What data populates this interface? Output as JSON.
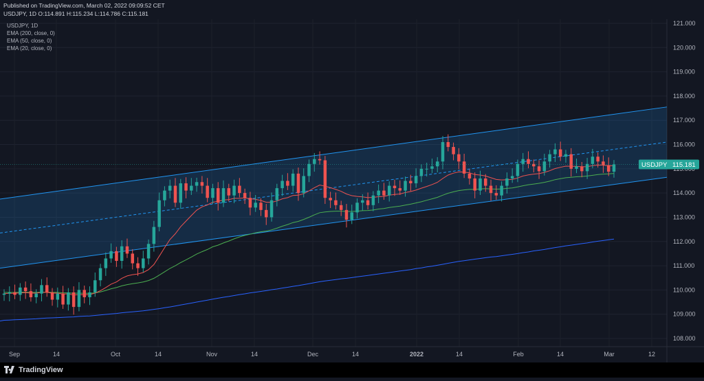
{
  "header": {
    "published": "Published on TradingView.com, March 02, 2022 09:09:52 CET",
    "ohlc": "USDJPY, 1D O:114.891 H:115.234 L:114.786 C:115.181"
  },
  "legend": [
    "USDJPY, 1D",
    "EMA (200, close, 0)",
    "EMA (50, close, 0)",
    "EMA (20, close, 0)"
  ],
  "footer": {
    "brand": "TradingView"
  },
  "colors": {
    "background": "#131722",
    "up": "#26a69a",
    "down": "#ef5350",
    "ema20": "#ef5350",
    "ema50": "#4caf50",
    "ema200": "#2962ff",
    "channel": "#2196f3",
    "price_tag": "#26a69a"
  },
  "chart_data": {
    "type": "candlestick",
    "symbol": "USDJPY",
    "interval": "1D",
    "ylim": [
      107.6,
      121.4
    ],
    "y_ticks": [
      "121.000",
      "120.000",
      "119.000",
      "118.000",
      "117.000",
      "116.000",
      "115.000",
      "114.000",
      "113.000",
      "112.000",
      "111.000",
      "110.000",
      "109.000",
      "108.000"
    ],
    "x_ticks": [
      "Sep",
      "14",
      "Oct",
      "14",
      "Nov",
      "14",
      "Dec",
      "14",
      "2022",
      "14",
      "Feb",
      "14",
      "Mar",
      "12"
    ],
    "last_price": {
      "label": "USDJPY",
      "value": "115.181"
    },
    "closes": [
      109.85,
      109.9,
      109.8,
      110.1,
      109.95,
      109.7,
      109.85,
      110.2,
      109.9,
      109.6,
      109.85,
      109.4,
      109.9,
      109.3,
      110,
      109.7,
      109.9,
      110.4,
      110.9,
      111.3,
      111.6,
      111.2,
      111.8,
      111.5,
      111.1,
      110.9,
      111.3,
      111.9,
      112.6,
      113.7,
      114.1,
      114.3,
      113.6,
      114.4,
      114.1,
      114.3,
      114.45,
      114.3,
      113.8,
      114.2,
      113.6,
      114.2,
      113.9,
      114.3,
      114,
      113.8,
      113.4,
      113.6,
      113.3,
      113,
      113.7,
      114.2,
      114.5,
      114.3,
      114.8,
      114.0,
      114.7,
      115.2,
      115.4,
      115.35,
      113.8,
      113.7,
      113.5,
      113.3,
      112.9,
      113.2,
      113.6,
      113.7,
      113.5,
      113.9,
      114.1,
      113.9,
      114.3,
      114.2,
      114.1,
      114.5,
      114.4,
      114.7,
      115,
      115,
      115.1,
      115.3,
      116.1,
      115.9,
      115.6,
      115.3,
      114.8,
      114.6,
      114.1,
      114.6,
      114.3,
      114,
      113.9,
      114.3,
      114.6,
      114.7,
      115.2,
      115.4,
      115.2,
      115.1,
      114.9,
      115.3,
      115.6,
      115.8,
      115.5,
      115.6,
      115,
      115.1,
      114.9,
      115.2,
      115.5,
      115.3,
      115.15,
      114.88,
      115.18
    ],
    "ema20": [
      109.85,
      109.86,
      109.86,
      109.88,
      109.89,
      109.87,
      109.87,
      109.9,
      109.9,
      109.87,
      109.87,
      109.83,
      109.84,
      109.79,
      109.81,
      109.8,
      109.81,
      109.87,
      109.97,
      110.1,
      110.24,
      110.33,
      110.48,
      110.58,
      110.63,
      110.66,
      110.72,
      110.84,
      111.05,
      111.39,
      111.74,
      112.08,
      112.32,
      112.61,
      112.84,
      113.07,
      113.29,
      113.43,
      113.51,
      113.62,
      113.66,
      113.71,
      113.73,
      113.78,
      113.78,
      113.8,
      113.76,
      113.74,
      113.69,
      113.62,
      113.62,
      113.67,
      113.76,
      113.81,
      113.9,
      113.91,
      113.97,
      114.09,
      114.22,
      114.33,
      114.28,
      114.22,
      114.15,
      114.07,
      113.96,
      113.89,
      113.86,
      113.84,
      113.81,
      113.82,
      113.85,
      113.86,
      113.91,
      113.94,
      113.96,
      114.02,
      114.06,
      114.12,
      114.2,
      114.27,
      114.35,
      114.44,
      114.6,
      114.74,
      114.82,
      114.87,
      114.86,
      114.83,
      114.76,
      114.74,
      114.7,
      114.63,
      114.56,
      114.54,
      114.55,
      114.56,
      114.62,
      114.7,
      114.75,
      114.78,
      114.8,
      114.85,
      114.92,
      115.01,
      115.06,
      115.11,
      115.1,
      115.1,
      115.08,
      115.09,
      115.13,
      115.15,
      115.15,
      115.12,
      115.13
    ],
    "ema50": [
      109.9,
      109.9,
      109.9,
      109.91,
      109.91,
      109.9,
      109.9,
      109.91,
      109.91,
      109.9,
      109.9,
      109.88,
      109.88,
      109.86,
      109.87,
      109.86,
      109.86,
      109.88,
      109.92,
      109.98,
      110.05,
      110.1,
      110.17,
      110.22,
      110.26,
      110.29,
      110.33,
      110.39,
      110.48,
      110.61,
      110.75,
      110.89,
      111,
      111.13,
      111.24,
      111.36,
      111.48,
      111.58,
      111.67,
      111.78,
      111.85,
      111.94,
      112.02,
      112.11,
      112.19,
      112.25,
      112.3,
      112.36,
      112.4,
      112.43,
      112.48,
      112.55,
      112.63,
      112.7,
      112.78,
      112.83,
      112.91,
      113,
      113.1,
      113.19,
      113.22,
      113.24,
      113.25,
      113.25,
      113.24,
      113.24,
      113.25,
      113.27,
      113.28,
      113.3,
      113.34,
      113.36,
      113.4,
      113.43,
      113.46,
      113.5,
      113.54,
      113.59,
      113.64,
      113.7,
      113.76,
      113.82,
      113.91,
      113.99,
      114.05,
      114.1,
      114.13,
      114.15,
      114.15,
      114.17,
      114.18,
      114.17,
      114.16,
      114.17,
      114.19,
      114.21,
      114.25,
      114.3,
      114.34,
      114.37,
      114.4,
      114.44,
      114.49,
      114.55,
      114.59,
      114.63,
      114.65,
      114.67,
      114.68,
      114.7,
      114.73,
      114.76,
      114.78,
      114.79,
      114.81
    ],
    "ema200": [
      108.75,
      108.76,
      108.77,
      108.78,
      108.79,
      108.8,
      108.81,
      108.83,
      108.84,
      108.85,
      108.86,
      108.87,
      108.88,
      108.89,
      108.91,
      108.92,
      108.93,
      108.95,
      108.97,
      108.99,
      109.01,
      109.03,
      109.06,
      109.08,
      109.1,
      109.12,
      109.14,
      109.17,
      109.2,
      109.23,
      109.27,
      109.3,
      109.34,
      109.38,
      109.42,
      109.46,
      109.5,
      109.54,
      109.58,
      109.62,
      109.66,
      109.7,
      109.73,
      109.77,
      109.81,
      109.84,
      109.88,
      109.91,
      109.94,
      109.97,
      110.01,
      110.04,
      110.08,
      110.11,
      110.15,
      110.18,
      110.22,
      110.26,
      110.3,
      110.34,
      110.37,
      110.4,
      110.43,
      110.46,
      110.48,
      110.51,
      110.54,
      110.57,
      110.6,
      110.63,
      110.66,
      110.69,
      110.72,
      110.75,
      110.78,
      110.81,
      110.84,
      110.88,
      110.91,
      110.95,
      110.98,
      111.02,
      111.06,
      111.1,
      111.14,
      111.18,
      111.21,
      111.24,
      111.27,
      111.3,
      111.33,
      111.36,
      111.38,
      111.41,
      111.44,
      111.47,
      111.5,
      111.54,
      111.57,
      111.61,
      111.64,
      111.67,
      111.71,
      111.75,
      111.78,
      111.82,
      111.85,
      111.88,
      111.91,
      111.94,
      111.98,
      112.01,
      112.04,
      112.07,
      112.1
    ]
  }
}
